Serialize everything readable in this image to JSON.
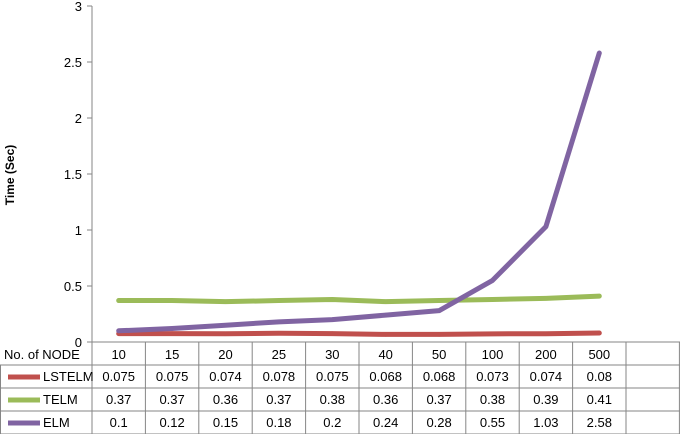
{
  "chart_data": {
    "type": "line",
    "ylabel": "Time (Sec)",
    "ylim": [
      0,
      3
    ],
    "yticks": [
      "0",
      "0.5",
      "1",
      "1.5",
      "2",
      "2.5",
      "3"
    ],
    "grid": false,
    "legend": "data table rows, left",
    "table_header": "No. of NODE",
    "categories": [
      "10",
      "15",
      "20",
      "25",
      "30",
      "40",
      "50",
      "100",
      "200",
      "500"
    ],
    "series": [
      {
        "name": "LSTELM",
        "color": "#c0504d",
        "values": [
          0.075,
          0.075,
          0.074,
          0.078,
          0.075,
          0.068,
          0.068,
          0.073,
          0.074,
          0.08
        ],
        "labels": [
          "0.075",
          "0.075",
          "0.074",
          "0.078",
          "0.075",
          "0.068",
          "0.068",
          "0.073",
          "0.074",
          "0.08"
        ]
      },
      {
        "name": "TELM",
        "color": "#9bbb59",
        "values": [
          0.37,
          0.37,
          0.36,
          0.37,
          0.38,
          0.36,
          0.37,
          0.38,
          0.39,
          0.41
        ],
        "labels": [
          "0.37",
          "0.37",
          "0.36",
          "0.37",
          "0.38",
          "0.36",
          "0.37",
          "0.38",
          "0.39",
          "0.41"
        ]
      },
      {
        "name": "ELM",
        "color": "#8064a2",
        "values": [
          0.1,
          0.12,
          0.15,
          0.18,
          0.2,
          0.24,
          0.28,
          0.55,
          1.03,
          2.58
        ],
        "labels": [
          "0.1",
          "0.12",
          "0.15",
          "0.18",
          "0.2",
          "0.24",
          "0.28",
          "0.55",
          "1.03",
          "2.58"
        ]
      }
    ]
  }
}
